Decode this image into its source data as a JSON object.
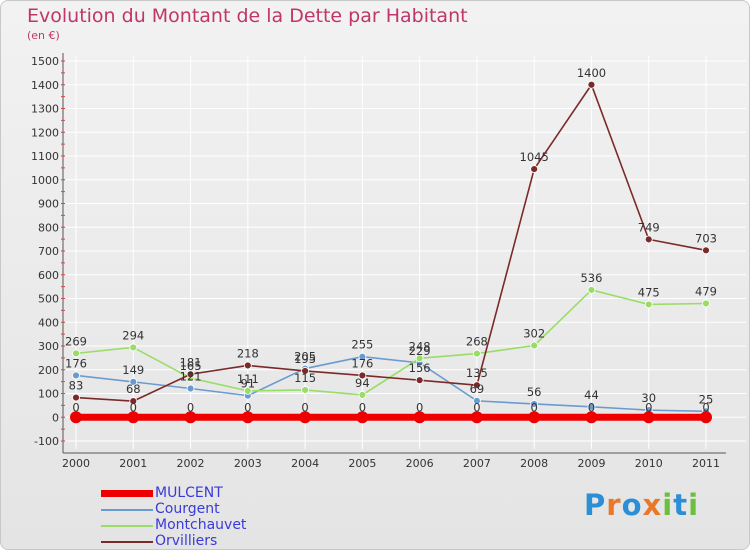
{
  "title": "Evolution du Montant de la Dette par Habitant",
  "unit": "(en €)",
  "brand": "Proxiti",
  "colors": {
    "title": "#c0366a",
    "legend_text": "#3a3ad9",
    "axis": "#555555",
    "grid": "#ffffff",
    "brand_letters": [
      "#2c8fd6",
      "#e9792a",
      "#2c8fd6",
      "#e9792a",
      "#6abf3c",
      "#2c8fd6",
      "#6abf3c"
    ]
  },
  "chart_data": {
    "type": "line",
    "title": "Evolution du Montant de la Dette par Habitant",
    "subtitle": "(en €)",
    "xlabel": "",
    "ylabel": "",
    "categories": [
      "2000",
      "2001",
      "2002",
      "2003",
      "2004",
      "2005",
      "2006",
      "2007",
      "2008",
      "2009",
      "2010",
      "2011"
    ],
    "ylim": [
      -100,
      1500
    ],
    "yticks": [
      -100,
      0,
      100,
      200,
      300,
      400,
      500,
      600,
      700,
      800,
      900,
      1000,
      1100,
      1200,
      1300,
      1400,
      1500
    ],
    "grid": true,
    "legend_position": "bottom-left",
    "series": [
      {
        "name": "MULCENT",
        "color": "#ee0000",
        "values": [
          0,
          0,
          0,
          0,
          0,
          0,
          0,
          0,
          0,
          0,
          0,
          0
        ],
        "labels": [
          "0",
          "0",
          "0",
          "0",
          "0",
          "0",
          "0",
          "0",
          "0",
          "0",
          "0",
          "0"
        ]
      },
      {
        "name": "Courgent",
        "color": "#6a9bd0",
        "values": [
          176,
          149,
          121,
          91,
          205,
          255,
          229,
          69,
          56,
          44,
          30,
          25
        ],
        "labels": [
          "176",
          "149",
          "121",
          "91",
          "205",
          "255",
          "229",
          "69",
          "56",
          "44",
          "30",
          "25"
        ]
      },
      {
        "name": "Montchauvet",
        "color": "#99dd66",
        "values": [
          269,
          294,
          165,
          111,
          115,
          94,
          248,
          268,
          302,
          536,
          475,
          479
        ],
        "labels": [
          "269",
          "294",
          "165",
          "111",
          "115",
          "94",
          "248",
          "268",
          "302",
          "536",
          "475",
          "479"
        ]
      },
      {
        "name": "Orvilliers",
        "color": "#7a2a2a",
        "values": [
          83,
          68,
          181,
          218,
          195,
          176,
          156,
          135,
          1045,
          1400,
          749,
          703
        ],
        "labels": [
          "83",
          "68",
          "181",
          "218",
          "195",
          "176",
          "156",
          "135",
          "1045",
          "1400",
          "749",
          "703"
        ]
      }
    ]
  }
}
